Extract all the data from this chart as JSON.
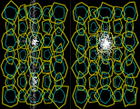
{
  "background_color": "#000000",
  "figsize": [
    1.54,
    1.2
  ],
  "dpi": 100,
  "ring_color_outer": "#aaaa00",
  "ring_color_inner": "#00aaaa",
  "ring_lw_outer": 0.8,
  "ring_lw_inner": 0.5,
  "traj_color": "#bbbbbb",
  "traj_color2": "#999999"
}
